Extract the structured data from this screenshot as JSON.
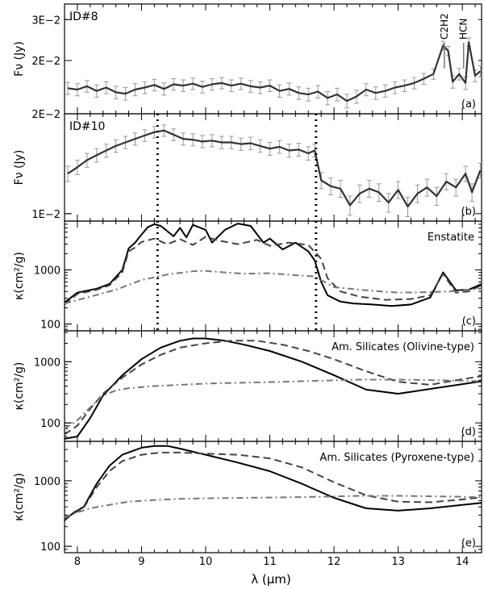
{
  "figure": {
    "xlabel": "λ (μm)",
    "x_tick_labels": [
      "8",
      "9",
      "10",
      "11",
      "12",
      "13",
      "14"
    ],
    "dotted_lines_x": [
      9.25,
      11.72
    ]
  },
  "chart_data": [
    {
      "type": "line",
      "panel_label": "(a)",
      "annotation": "ID#8",
      "ylabel": "Fν (Jy)",
      "yscale": "log",
      "xlim": [
        7.8,
        14.3
      ],
      "ylim": [
        0.0118,
        0.035
      ],
      "ytick_values": [
        0.02,
        0.03
      ],
      "ytick_labels": [
        "2E−2",
        "3E−2"
      ],
      "line_markers": [
        {
          "label": "C2H2",
          "x": 13.72
        },
        {
          "label": "HCN",
          "x": 14.02
        }
      ],
      "series": [
        {
          "color": "#333333",
          "error_color": "#999999",
          "x": [
            7.85,
            8.0,
            8.15,
            8.3,
            8.45,
            8.6,
            8.75,
            8.9,
            9.05,
            9.2,
            9.35,
            9.5,
            9.65,
            9.8,
            9.95,
            10.1,
            10.25,
            10.4,
            10.55,
            10.7,
            10.85,
            11.0,
            11.15,
            11.3,
            11.45,
            11.6,
            11.75,
            11.9,
            12.05,
            12.2,
            12.35,
            12.5,
            12.65,
            12.8,
            12.95,
            13.1,
            13.25,
            13.4,
            13.55,
            13.7,
            13.78,
            13.85,
            13.95,
            14.05,
            14.1,
            14.2,
            14.28
          ],
          "y": [
            0.0152,
            0.015,
            0.0155,
            0.0148,
            0.0153,
            0.0146,
            0.0144,
            0.015,
            0.0153,
            0.0157,
            0.0151,
            0.0158,
            0.0156,
            0.0159,
            0.0154,
            0.0158,
            0.016,
            0.0156,
            0.0159,
            0.0155,
            0.0153,
            0.0156,
            0.0148,
            0.0151,
            0.0145,
            0.0143,
            0.0147,
            0.0138,
            0.0143,
            0.0134,
            0.014,
            0.015,
            0.0145,
            0.0148,
            0.0153,
            0.0156,
            0.016,
            0.0167,
            0.0175,
            0.0232,
            0.022,
            0.0162,
            0.0175,
            0.016,
            0.024,
            0.0172,
            0.018
          ],
          "err": [
            0.0009,
            0.0009,
            0.0009,
            0.0009,
            0.0009,
            0.0009,
            0.0009,
            0.0009,
            0.0009,
            0.0009,
            0.0009,
            0.0009,
            0.0009,
            0.0009,
            0.0009,
            0.0009,
            0.0009,
            0.0009,
            0.0009,
            0.0009,
            0.0009,
            0.0009,
            0.0009,
            0.0009,
            0.0009,
            0.0009,
            0.0009,
            0.0009,
            0.0009,
            0.0009,
            0.0009,
            0.0009,
            0.0009,
            0.0009,
            0.0009,
            0.0009,
            0.0009,
            0.0009,
            0.0009,
            0.001,
            0.001,
            0.001,
            0.001,
            0.001,
            0.001,
            0.001,
            0.001
          ]
        }
      ]
    },
    {
      "type": "line",
      "panel_label": "(b)",
      "annotation": "ID#10",
      "ylabel": "Fν (Jy)",
      "yscale": "log",
      "xlim": [
        7.8,
        14.3
      ],
      "ylim": [
        0.0095,
        0.02
      ],
      "ytick_values": [
        0.01,
        0.02
      ],
      "ytick_labels": [
        "1E−2",
        "2E−2"
      ],
      "series": [
        {
          "color": "#333333",
          "error_color": "#999999",
          "x": [
            7.85,
            8.0,
            8.15,
            8.3,
            8.45,
            8.6,
            8.75,
            8.9,
            9.05,
            9.2,
            9.35,
            9.5,
            9.65,
            9.8,
            9.95,
            10.1,
            10.25,
            10.4,
            10.55,
            10.7,
            10.85,
            11.0,
            11.15,
            11.3,
            11.45,
            11.6,
            11.7,
            11.8,
            11.95,
            12.1,
            12.25,
            12.4,
            12.55,
            12.7,
            12.85,
            13.0,
            13.15,
            13.3,
            13.45,
            13.6,
            13.75,
            13.9,
            14.05,
            14.15,
            14.28
          ],
          "y": [
            0.0132,
            0.0138,
            0.0145,
            0.015,
            0.0155,
            0.016,
            0.0164,
            0.0168,
            0.0172,
            0.0176,
            0.0178,
            0.0173,
            0.0168,
            0.0167,
            0.0165,
            0.0166,
            0.0164,
            0.0164,
            0.0162,
            0.0163,
            0.016,
            0.0157,
            0.0159,
            0.0155,
            0.0156,
            0.0152,
            0.0155,
            0.0126,
            0.0121,
            0.0119,
            0.0106,
            0.0115,
            0.0119,
            0.0116,
            0.0108,
            0.0118,
            0.0105,
            0.0115,
            0.012,
            0.0113,
            0.0125,
            0.012,
            0.0132,
            0.0116,
            0.0135
          ],
          "err": [
            0.0007,
            0.0007,
            0.0007,
            0.0007,
            0.0007,
            0.0007,
            0.0007,
            0.0007,
            0.0007,
            0.0007,
            0.0007,
            0.0007,
            0.0007,
            0.0007,
            0.0007,
            0.0007,
            0.0007,
            0.0007,
            0.0007,
            0.0007,
            0.0007,
            0.0007,
            0.0007,
            0.0007,
            0.0007,
            0.0007,
            0.0007,
            0.0007,
            0.0007,
            0.0007,
            0.0007,
            0.0007,
            0.0007,
            0.0007,
            0.0007,
            0.0007,
            0.0007,
            0.0007,
            0.0007,
            0.0007,
            0.0007,
            0.0007,
            0.0007,
            0.0007,
            0.0007
          ]
        }
      ]
    },
    {
      "type": "line",
      "panel_label": "(c)",
      "annotation": "Enstatite",
      "ylabel": "κ(cm²/g)",
      "yscale": "log",
      "xlim": [
        7.8,
        14.3
      ],
      "ylim": [
        75,
        8000
      ],
      "ytick_values": [
        100,
        1000
      ],
      "ytick_labels": [
        "100",
        "1000"
      ],
      "series": [
        {
          "style": "solid",
          "color": "#000000",
          "x": [
            7.8,
            8.0,
            8.3,
            8.5,
            8.7,
            8.8,
            8.9,
            9.0,
            9.1,
            9.2,
            9.3,
            9.5,
            9.6,
            9.7,
            9.8,
            10.0,
            10.1,
            10.3,
            10.5,
            10.7,
            10.9,
            11.0,
            11.2,
            11.4,
            11.6,
            11.7,
            11.8,
            11.9,
            12.1,
            12.3,
            12.6,
            12.9,
            13.2,
            13.5,
            13.7,
            13.9,
            14.1,
            14.3
          ],
          "y": [
            250,
            380,
            450,
            550,
            1000,
            2500,
            3200,
            4500,
            6200,
            7000,
            6500,
            4200,
            6000,
            4000,
            6800,
            5500,
            3200,
            5500,
            7200,
            6500,
            3200,
            3800,
            2400,
            3200,
            2200,
            1500,
            600,
            340,
            260,
            240,
            230,
            215,
            230,
            310,
            900,
            420,
            430,
            550
          ]
        },
        {
          "style": "dashed",
          "color": "#444444",
          "x": [
            7.8,
            8.0,
            8.3,
            8.5,
            8.7,
            8.8,
            8.9,
            9.0,
            9.2,
            9.4,
            9.6,
            9.8,
            10.0,
            10.2,
            10.5,
            10.8,
            11.0,
            11.3,
            11.6,
            11.8,
            11.9,
            12.1,
            12.4,
            12.8,
            13.2,
            13.5,
            13.7,
            13.9,
            14.1,
            14.3
          ],
          "y": [
            230,
            360,
            430,
            520,
            900,
            2200,
            2600,
            3300,
            3800,
            3000,
            3700,
            2900,
            4100,
            3500,
            3000,
            3600,
            2800,
            3200,
            2900,
            1600,
            700,
            400,
            320,
            280,
            290,
            340,
            850,
            380,
            400,
            520
          ]
        },
        {
          "style": "dashdot",
          "color": "#777777",
          "x": [
            7.8,
            8.2,
            8.6,
            9.0,
            9.4,
            9.8,
            10.0,
            10.3,
            10.6,
            11.0,
            11.4,
            11.7,
            11.85,
            12.0,
            12.5,
            13.0,
            13.5,
            13.8,
            14.0,
            14.3
          ],
          "y": [
            240,
            320,
            430,
            650,
            820,
            950,
            960,
            900,
            850,
            870,
            800,
            760,
            600,
            480,
            420,
            380,
            390,
            400,
            420,
            450
          ]
        }
      ]
    },
    {
      "type": "line",
      "panel_label": "(d)",
      "annotation": "Am. Silicates (Olivine-type)",
      "ylabel": "κ(cm²/g)",
      "yscale": "log",
      "xlim": [
        7.8,
        14.3
      ],
      "ylim": [
        50,
        3200
      ],
      "ytick_values": [
        100,
        1000
      ],
      "ytick_labels": [
        "100",
        "1000"
      ],
      "series": [
        {
          "style": "solid",
          "color": "#000000",
          "x": [
            7.8,
            8.0,
            8.2,
            8.4,
            8.7,
            9.0,
            9.3,
            9.6,
            9.8,
            10.0,
            10.3,
            10.6,
            11.0,
            11.5,
            12.0,
            12.5,
            13.0,
            13.5,
            14.0,
            14.3
          ],
          "y": [
            55,
            60,
            120,
            280,
            600,
            1100,
            1700,
            2200,
            2400,
            2400,
            2200,
            1900,
            1500,
            1000,
            600,
            350,
            300,
            360,
            430,
            480
          ]
        },
        {
          "style": "dashed",
          "color": "#444444",
          "x": [
            7.8,
            8.0,
            8.2,
            8.4,
            8.7,
            9.0,
            9.3,
            9.6,
            10.0,
            10.4,
            10.8,
            11.2,
            11.6,
            12.0,
            12.5,
            13.0,
            13.5,
            14.0,
            14.3
          ],
          "y": [
            65,
            90,
            170,
            300,
            550,
            900,
            1300,
            1700,
            2000,
            2200,
            2200,
            1900,
            1500,
            1100,
            700,
            470,
            420,
            520,
            580
          ]
        },
        {
          "style": "dashdot",
          "color": "#777777",
          "x": [
            7.8,
            8.0,
            8.2,
            8.4,
            8.6,
            8.8,
            9.2,
            9.6,
            10.0,
            10.6,
            11.2,
            11.8,
            12.4,
            13.0,
            13.5,
            14.0,
            14.3
          ],
          "y": [
            80,
            110,
            180,
            280,
            340,
            370,
            400,
            420,
            440,
            455,
            470,
            490,
            510,
            510,
            500,
            490,
            480
          ]
        }
      ]
    },
    {
      "type": "line",
      "panel_label": "(e)",
      "annotation": "Am. Silicates (Pyroxene-type)",
      "ylabel": "κ(cm²/g)",
      "yscale": "log",
      "xlim": [
        7.8,
        14.3
      ],
      "ylim": [
        80,
        4000
      ],
      "ytick_values": [
        100,
        1000
      ],
      "ytick_labels": [
        "100",
        "1000"
      ],
      "series": [
        {
          "style": "solid",
          "color": "#000000",
          "x": [
            7.8,
            7.95,
            8.1,
            8.3,
            8.5,
            8.7,
            9.0,
            9.2,
            9.4,
            9.6,
            10.0,
            10.5,
            11.0,
            11.5,
            12.0,
            12.5,
            13.0,
            13.5,
            14.0,
            14.3
          ],
          "y": [
            250,
            330,
            400,
            900,
            1700,
            2500,
            3200,
            3400,
            3400,
            3100,
            2500,
            1900,
            1400,
            900,
            550,
            380,
            350,
            380,
            430,
            460
          ]
        },
        {
          "style": "dashed",
          "color": "#444444",
          "x": [
            7.8,
            7.95,
            8.1,
            8.3,
            8.5,
            8.7,
            9.0,
            9.3,
            9.6,
            10.0,
            10.5,
            11.0,
            11.5,
            12.0,
            12.5,
            13.0,
            13.5,
            14.0,
            14.3
          ],
          "y": [
            260,
            320,
            390,
            800,
            1400,
            2000,
            2500,
            2700,
            2700,
            2600,
            2500,
            2200,
            1600,
            950,
            600,
            480,
            470,
            520,
            560
          ]
        },
        {
          "style": "dashdot",
          "color": "#777777",
          "x": [
            7.8,
            8.0,
            8.2,
            8.5,
            8.8,
            9.2,
            9.6,
            10.0,
            10.6,
            11.2,
            11.8,
            12.4,
            13.0,
            13.5,
            14.0,
            14.3
          ],
          "y": [
            280,
            330,
            380,
            430,
            480,
            510,
            530,
            540,
            550,
            560,
            570,
            590,
            590,
            580,
            570,
            560
          ]
        }
      ]
    }
  ]
}
